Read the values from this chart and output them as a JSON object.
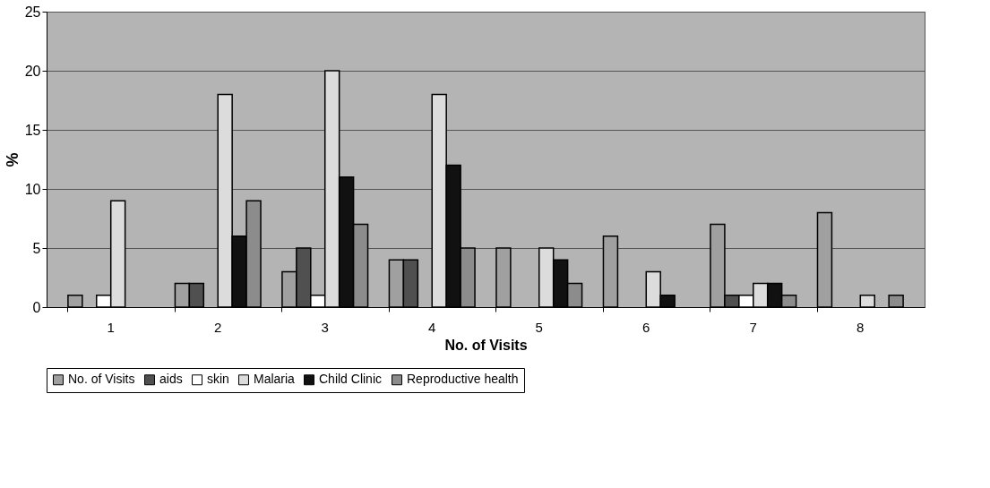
{
  "chart_data": {
    "type": "bar",
    "xlabel": "No. of Visits",
    "ylabel": "%",
    "categories": [
      "1",
      "2",
      "3",
      "4",
      "5",
      "6",
      "7",
      "8"
    ],
    "series": [
      {
        "name": "No. of Visits",
        "color": "#a0a0a0",
        "values": [
          1,
          2,
          3,
          4,
          5,
          6,
          7,
          8
        ]
      },
      {
        "name": "aids",
        "color": "#505050",
        "values": [
          null,
          2,
          5,
          4,
          null,
          null,
          1,
          null
        ]
      },
      {
        "name": "skin",
        "color": "#ffffff",
        "values": [
          1,
          null,
          1,
          null,
          null,
          null,
          1,
          null
        ]
      },
      {
        "name": "Malaria",
        "color": "#dcdcdc",
        "values": [
          9,
          18,
          20,
          18,
          5,
          3,
          2,
          1
        ]
      },
      {
        "name": "Child Clinic",
        "color": "#111111",
        "values": [
          null,
          6,
          11,
          12,
          4,
          1,
          2,
          null
        ]
      },
      {
        "name": "Reproductive health",
        "color": "#8c8c8c",
        "values": [
          null,
          9,
          7,
          5,
          2,
          null,
          1,
          1
        ]
      }
    ],
    "ylim": [
      0,
      25
    ],
    "yticks": [
      0,
      5,
      10,
      15,
      20,
      25
    ],
    "grid": "y",
    "legend": "bottom"
  }
}
